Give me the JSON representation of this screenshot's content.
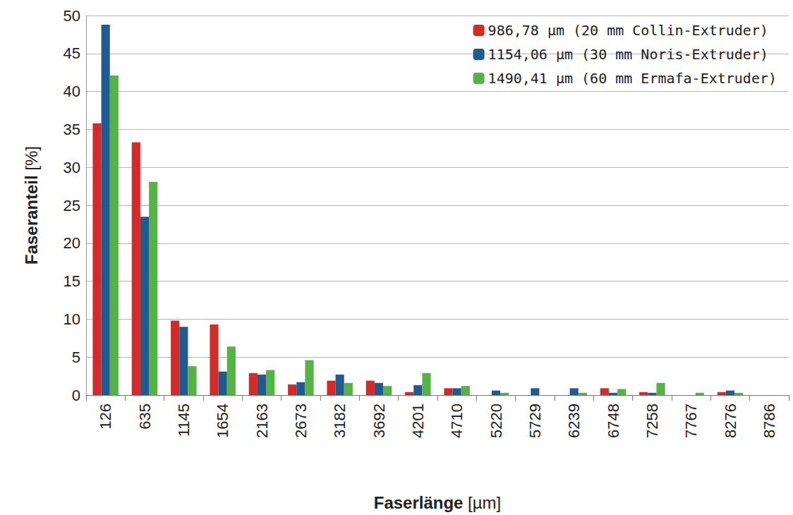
{
  "chart_data": {
    "type": "bar",
    "x_label": "Faserlänge [µm]",
    "y_label": "Faseranteil [%]",
    "categories": [
      "126",
      "635",
      "1145",
      "1654",
      "2163",
      "2673",
      "3182",
      "3692",
      "4201",
      "4710",
      "5220",
      "5729",
      "6239",
      "6748",
      "7258",
      "7767",
      "8276",
      "8786"
    ],
    "series": [
      {
        "name": "986,78 µm (20 mm Collin-Extruder)",
        "color": "#d42a2a",
        "values": [
          35.8,
          33.3,
          9.8,
          9.3,
          2.9,
          1.4,
          1.9,
          1.9,
          0.4,
          0.9,
          0,
          0,
          0,
          0.9,
          0.4,
          0,
          0.4,
          0
        ]
      },
      {
        "name": "1154,06 µm (30 mm Noris-Extruder)",
        "color": "#1f5b91",
        "values": [
          48.8,
          23.5,
          9.0,
          3.1,
          2.7,
          1.7,
          2.7,
          1.6,
          1.3,
          0.9,
          0.6,
          0.9,
          0.9,
          0.3,
          0.3,
          0,
          0.6,
          0
        ]
      },
      {
        "name": "1490,41 µm (60 mm Ermafa-Extruder)",
        "color": "#55b346",
        "values": [
          42.1,
          28.1,
          3.8,
          6.4,
          3.3,
          4.6,
          1.6,
          1.2,
          2.9,
          1.2,
          0.3,
          0,
          0.3,
          0.8,
          1.6,
          0.3,
          0.3,
          0
        ]
      }
    ],
    "ylim": [
      0,
      50
    ],
    "yticks": [
      0,
      5,
      10,
      15,
      20,
      25,
      30,
      35,
      40,
      45,
      50
    ],
    "grid": true,
    "legend": "top-right",
    "data_labels": false
  }
}
